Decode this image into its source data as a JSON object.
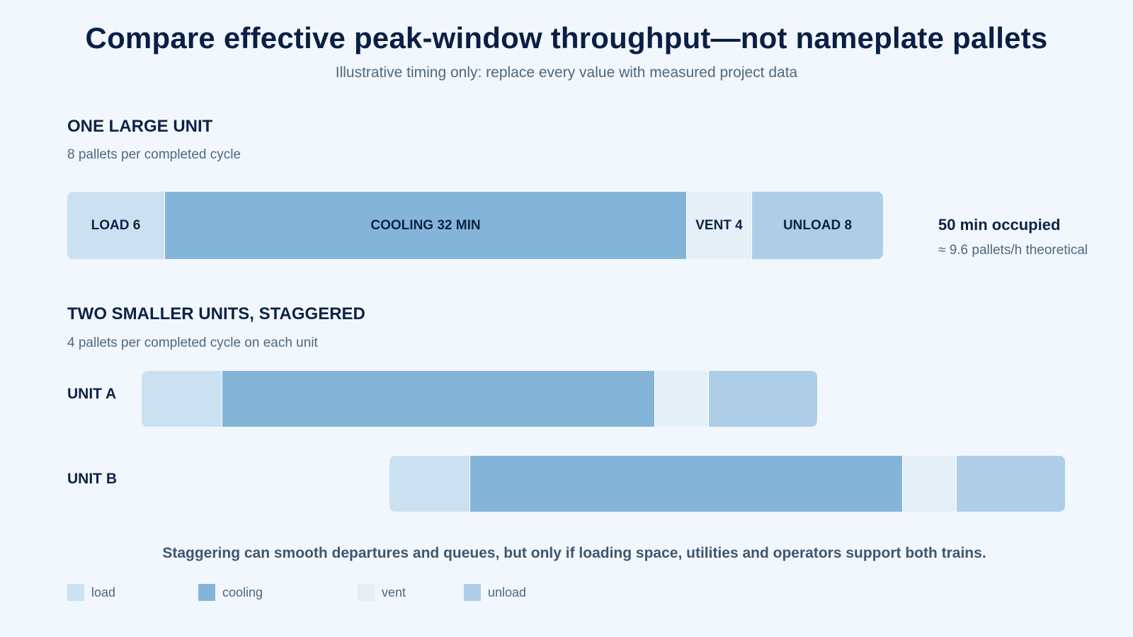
{
  "header": {
    "title": "Compare effective peak-window throughput—not nameplate pallets",
    "subtitle": "Illustrative timing only: replace every value with measured project data"
  },
  "large_unit": {
    "heading": "ONE LARGE UNIT",
    "subheading": "8 pallets per completed cycle",
    "phases": [
      {
        "phase": "load",
        "label": "LOAD 6",
        "minutes": 6
      },
      {
        "phase": "cooling",
        "label": "COOLING 32 MIN",
        "minutes": 32
      },
      {
        "phase": "vent",
        "label": "VENT 4",
        "minutes": 4
      },
      {
        "phase": "unload",
        "label": "UNLOAD 8",
        "minutes": 8
      }
    ],
    "occupied_label": "50 min occupied",
    "throughput_label": "≈ 9.6 pallets/h theoretical"
  },
  "small_units": {
    "heading": "TWO SMALLER UNITS, STAGGERED",
    "subheading": "4 pallets per completed cycle on each unit",
    "units": [
      {
        "label": "UNIT A",
        "phases": [
          {
            "phase": "load",
            "minutes": 6
          },
          {
            "phase": "cooling",
            "minutes": 32
          },
          {
            "phase": "vent",
            "minutes": 4
          },
          {
            "phase": "unload",
            "minutes": 8
          }
        ]
      },
      {
        "label": "UNIT B",
        "phases": [
          {
            "phase": "load",
            "minutes": 6
          },
          {
            "phase": "cooling",
            "minutes": 32
          },
          {
            "phase": "vent",
            "minutes": 4
          },
          {
            "phase": "unload",
            "minutes": 8
          }
        ]
      }
    ]
  },
  "note": "Staggering can smooth departures and queues, but only if loading space, utilities and operators support both trains.",
  "legend": [
    {
      "phase": "load",
      "label": "load"
    },
    {
      "phase": "cooling",
      "label": "cooling"
    },
    {
      "phase": "vent",
      "label": "vent"
    },
    {
      "phase": "unload",
      "label": "unload"
    }
  ],
  "colors": {
    "load": "#cbe1f1",
    "cooling": "#84b5d8",
    "vent": "#e4eff8",
    "unload": "#aecee7"
  }
}
